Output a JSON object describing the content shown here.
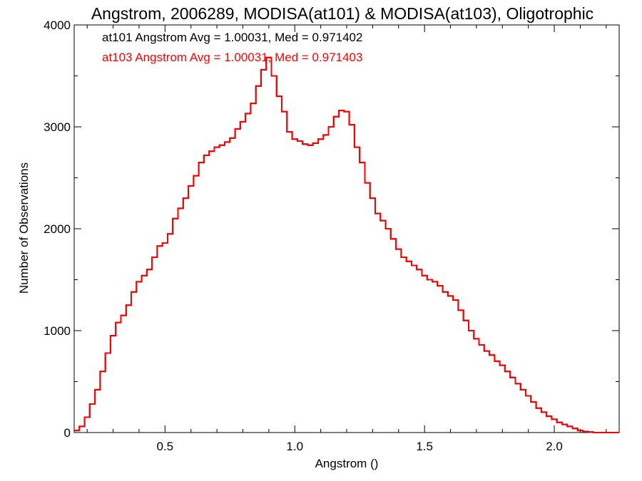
{
  "chart_data": {
    "type": "line",
    "title": "Angstrom, 2006289, MODISA(at101) & MODISA(at103), Oligotrophic",
    "xlabel": "Angstrom ()",
    "ylabel": "Number of Observations",
    "xlim": [
      0.15,
      2.25
    ],
    "ylim": [
      0,
      4000
    ],
    "x_ticks": [
      0.5,
      1.0,
      1.5,
      2.0
    ],
    "x_tick_labels": [
      "0.5",
      "1.0",
      "1.5",
      "2.0"
    ],
    "y_ticks": [
      0,
      1000,
      2000,
      3000,
      4000
    ],
    "y_tick_labels": [
      "0",
      "1000",
      "2000",
      "3000",
      "4000"
    ],
    "grid": false,
    "legend_position": "top-left",
    "annotations": [
      {
        "text": "at101 Angstrom Avg = 1.00031, Med = 0.971402",
        "color": "#000000"
      },
      {
        "text": "at103 Angstrom Avg = 1.00031, Med = 0.971403",
        "color": "#ff0000"
      }
    ],
    "series": [
      {
        "color": "#000000",
        "step": true,
        "x": [
          0.15,
          0.17,
          0.19,
          0.21,
          0.23,
          0.25,
          0.27,
          0.29,
          0.31,
          0.33,
          0.35,
          0.37,
          0.39,
          0.41,
          0.43,
          0.45,
          0.47,
          0.49,
          0.51,
          0.53,
          0.55,
          0.57,
          0.59,
          0.61,
          0.63,
          0.65,
          0.67,
          0.69,
          0.71,
          0.73,
          0.75,
          0.77,
          0.79,
          0.81,
          0.83,
          0.85,
          0.87,
          0.89,
          0.91,
          0.93,
          0.95,
          0.97,
          0.99,
          1.01,
          1.03,
          1.05,
          1.07,
          1.09,
          1.11,
          1.13,
          1.15,
          1.17,
          1.19,
          1.21,
          1.23,
          1.25,
          1.27,
          1.29,
          1.31,
          1.33,
          1.35,
          1.37,
          1.39,
          1.41,
          1.43,
          1.45,
          1.47,
          1.49,
          1.51,
          1.53,
          1.55,
          1.57,
          1.59,
          1.61,
          1.63,
          1.65,
          1.67,
          1.69,
          1.71,
          1.73,
          1.75,
          1.77,
          1.79,
          1.81,
          1.83,
          1.85,
          1.87,
          1.89,
          1.91,
          1.93,
          1.95,
          1.97,
          1.99,
          2.01,
          2.03,
          2.05,
          2.07,
          2.09,
          2.11,
          2.13,
          2.15,
          2.17,
          2.19,
          2.21,
          2.23,
          2.25
        ],
        "y": [
          20,
          60,
          150,
          280,
          420,
          600,
          780,
          950,
          1080,
          1150,
          1250,
          1380,
          1480,
          1540,
          1600,
          1720,
          1830,
          1860,
          1950,
          2100,
          2200,
          2300,
          2420,
          2520,
          2650,
          2720,
          2760,
          2800,
          2820,
          2850,
          2890,
          2980,
          3050,
          3130,
          3230,
          3400,
          3560,
          3680,
          3500,
          3300,
          3150,
          2950,
          2880,
          2860,
          2830,
          2820,
          2840,
          2880,
          2920,
          3000,
          3100,
          3160,
          3150,
          3020,
          2800,
          2650,
          2450,
          2300,
          2150,
          2080,
          2000,
          1900,
          1800,
          1720,
          1680,
          1640,
          1600,
          1540,
          1500,
          1480,
          1440,
          1380,
          1340,
          1300,
          1200,
          1100,
          1000,
          920,
          860,
          800,
          760,
          700,
          660,
          600,
          540,
          480,
          420,
          360,
          300,
          240,
          200,
          160,
          130,
          100,
          80,
          60,
          40,
          20,
          10,
          5,
          0,
          0,
          0,
          0,
          0,
          0
        ]
      },
      {
        "color": "#ff0000",
        "step": true,
        "x": [
          0.15,
          0.17,
          0.19,
          0.21,
          0.23,
          0.25,
          0.27,
          0.29,
          0.31,
          0.33,
          0.35,
          0.37,
          0.39,
          0.41,
          0.43,
          0.45,
          0.47,
          0.49,
          0.51,
          0.53,
          0.55,
          0.57,
          0.59,
          0.61,
          0.63,
          0.65,
          0.67,
          0.69,
          0.71,
          0.73,
          0.75,
          0.77,
          0.79,
          0.81,
          0.83,
          0.85,
          0.87,
          0.89,
          0.91,
          0.93,
          0.95,
          0.97,
          0.99,
          1.01,
          1.03,
          1.05,
          1.07,
          1.09,
          1.11,
          1.13,
          1.15,
          1.17,
          1.19,
          1.21,
          1.23,
          1.25,
          1.27,
          1.29,
          1.31,
          1.33,
          1.35,
          1.37,
          1.39,
          1.41,
          1.43,
          1.45,
          1.47,
          1.49,
          1.51,
          1.53,
          1.55,
          1.57,
          1.59,
          1.61,
          1.63,
          1.65,
          1.67,
          1.69,
          1.71,
          1.73,
          1.75,
          1.77,
          1.79,
          1.81,
          1.83,
          1.85,
          1.87,
          1.89,
          1.91,
          1.93,
          1.95,
          1.97,
          1.99,
          2.01,
          2.03,
          2.05,
          2.07,
          2.09,
          2.11,
          2.13,
          2.15,
          2.17,
          2.19,
          2.21,
          2.23,
          2.25
        ],
        "y": [
          20,
          60,
          150,
          280,
          420,
          600,
          780,
          950,
          1080,
          1150,
          1250,
          1380,
          1480,
          1540,
          1600,
          1720,
          1830,
          1860,
          1950,
          2100,
          2200,
          2300,
          2420,
          2520,
          2650,
          2720,
          2760,
          2800,
          2820,
          2850,
          2890,
          2980,
          3050,
          3130,
          3230,
          3400,
          3560,
          3680,
          3500,
          3300,
          3150,
          2950,
          2880,
          2860,
          2830,
          2820,
          2840,
          2880,
          2920,
          3000,
          3100,
          3160,
          3150,
          3020,
          2800,
          2650,
          2450,
          2300,
          2150,
          2080,
          2000,
          1900,
          1800,
          1720,
          1680,
          1640,
          1600,
          1540,
          1500,
          1480,
          1440,
          1380,
          1340,
          1300,
          1200,
          1100,
          1000,
          920,
          860,
          800,
          760,
          700,
          660,
          600,
          540,
          480,
          420,
          360,
          300,
          240,
          200,
          160,
          130,
          100,
          80,
          60,
          40,
          20,
          10,
          5,
          0,
          0,
          0,
          0,
          0,
          0
        ]
      }
    ]
  }
}
